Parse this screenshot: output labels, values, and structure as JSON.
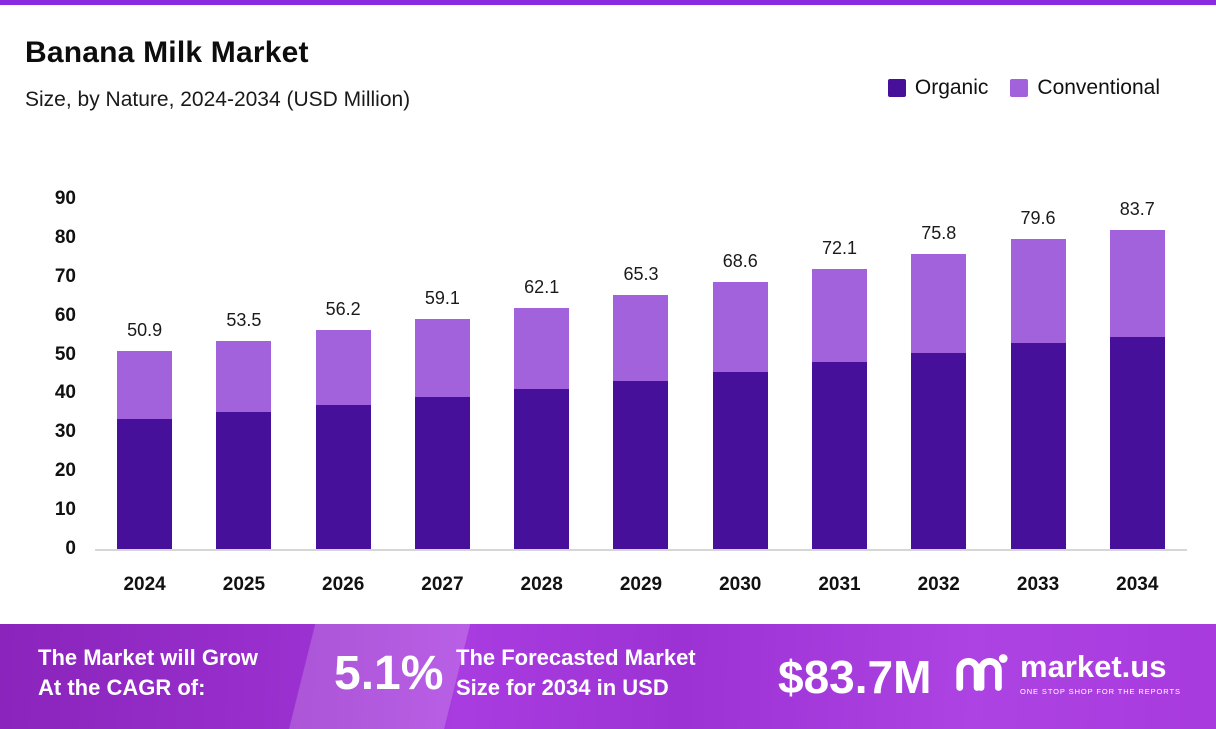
{
  "chart_data": {
    "type": "bar",
    "stacked": true,
    "title": "Banana Milk Market",
    "subtitle": "Size, by Nature, 2024-2034 (USD Million)",
    "unit": "USD Million",
    "categories": [
      "2024",
      "2025",
      "2026",
      "2027",
      "2028",
      "2029",
      "2030",
      "2031",
      "2032",
      "2033",
      "2034"
    ],
    "series": [
      {
        "name": "Organic",
        "color": "#46109b",
        "values": [
          33.4,
          35.3,
          37.1,
          39.2,
          41.1,
          43.3,
          45.6,
          48.0,
          50.5,
          53.1,
          55.7
        ]
      },
      {
        "name": "Conventional",
        "color": "#a262dc",
        "values": [
          17.5,
          18.2,
          19.1,
          19.9,
          21.0,
          22.0,
          23.0,
          24.1,
          25.3,
          26.5,
          28.0
        ]
      }
    ],
    "totals": [
      50.9,
      53.5,
      56.2,
      59.1,
      62.1,
      65.3,
      68.6,
      72.1,
      75.8,
      79.6,
      83.7
    ],
    "ylim": [
      0,
      90
    ],
    "yticks": [
      0,
      10,
      20,
      30,
      40,
      50,
      60,
      70,
      80,
      90
    ],
    "legend_position": "top-right",
    "grid": false
  },
  "banner": {
    "cagr_label": "The Market will Grow\nAt the CAGR of:",
    "cagr_value": "5.1%",
    "forecast_label": "The Forecasted Market\nSize for 2034 in USD",
    "forecast_value": "$83.7M",
    "brand_name": "market.us",
    "brand_tagline": "ONE STOP SHOP FOR THE REPORTS"
  },
  "colors": {
    "organic": "#46109b",
    "conventional": "#a262dc",
    "top_stripe": "#8a2be2",
    "banner_gradient_start": "#8a24bb",
    "banner_gradient_end": "#a83ade"
  }
}
